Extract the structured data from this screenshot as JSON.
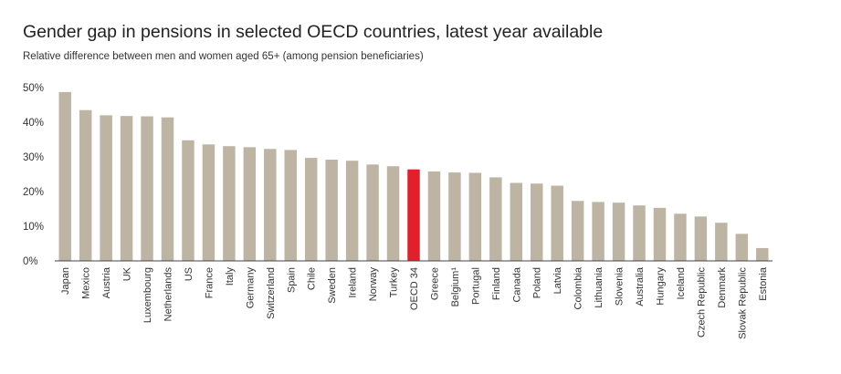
{
  "header": {
    "title": "Gender gap in pensions in selected OECD countries, latest year available",
    "subtitle": "Relative difference between men and women aged 65+ (among pension beneficiaries)"
  },
  "colors": {
    "bar": "#bdb4a4",
    "highlight": "#e2202a",
    "axis": "#444444"
  },
  "chart_data": {
    "type": "bar",
    "categories": [
      "Japan",
      "Mexico",
      "Austria",
      "UK",
      "Luxembourg",
      "Netherlands",
      "US",
      "France",
      "Italy",
      "Germany",
      "Switzerland",
      "Spain",
      "Chile",
      "Sweden",
      "Ireland",
      "Norway",
      "Turkey",
      "OECD 34",
      "Greece",
      "Belgium¹",
      "Portugal",
      "Finland",
      "Canada",
      "Poland",
      "Latvia",
      "Colombia",
      "Lithuania",
      "Slovenia",
      "Australia",
      "Hungary",
      "Iceland",
      "Czech Republic",
      "Denmark",
      "Slovak Republic",
      "Estonia"
    ],
    "values": [
      48.7,
      43.5,
      42.0,
      41.8,
      41.7,
      41.4,
      34.8,
      33.6,
      33.1,
      32.8,
      32.3,
      32.0,
      29.7,
      29.2,
      28.9,
      27.8,
      27.3,
      26.4,
      25.8,
      25.5,
      25.4,
      24.1,
      22.5,
      22.3,
      21.7,
      17.3,
      17.0,
      16.8,
      16.0,
      15.3,
      13.6,
      12.8,
      11.0,
      7.8,
      3.7
    ],
    "highlight": "OECD 34",
    "ylim": [
      0,
      50
    ],
    "yticks": [
      "0%",
      "10%",
      "20%",
      "30%",
      "40%",
      "50%"
    ],
    "grid": false,
    "xlabel": "",
    "ylabel": ""
  }
}
